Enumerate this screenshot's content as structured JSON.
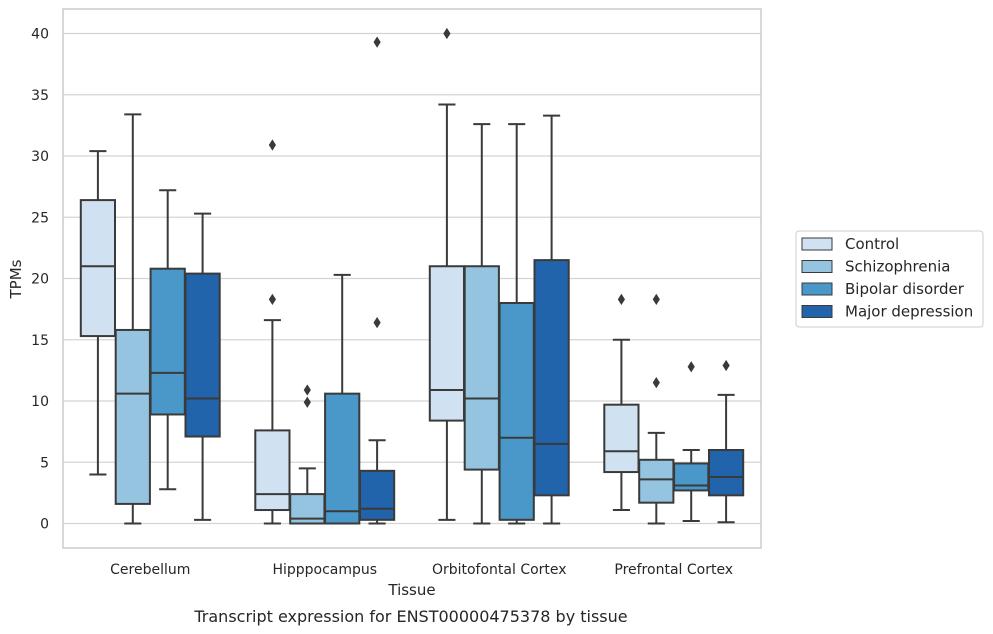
{
  "chart_data": {
    "type": "box",
    "caption": "Transcript expression for ENST00000475378 by tissue",
    "xlabel": "Tissue",
    "ylabel": "TPMs",
    "ylim": [
      -2,
      42
    ],
    "yticks": [
      0,
      5,
      10,
      15,
      20,
      25,
      30,
      35,
      40
    ],
    "grid": true,
    "legend_position": "right",
    "categories": [
      "Cerebellum",
      "Hipppocampus",
      "Orbitofontal Cortex",
      "Prefrontal Cortex"
    ],
    "series": [
      {
        "name": "Control",
        "color": "#d0e1f2",
        "boxes": [
          {
            "whisker_low": 4.0,
            "q1": 15.3,
            "median": 21.0,
            "q3": 26.4,
            "whisker_high": 30.4,
            "outliers": []
          },
          {
            "whisker_low": 0.0,
            "q1": 1.1,
            "median": 2.4,
            "q3": 7.6,
            "whisker_high": 16.6,
            "outliers": [
              18.3,
              30.9
            ]
          },
          {
            "whisker_low": 0.3,
            "q1": 8.4,
            "median": 10.9,
            "q3": 21.0,
            "whisker_high": 34.2,
            "outliers": [
              40.0
            ]
          },
          {
            "whisker_low": 1.1,
            "q1": 4.2,
            "median": 5.9,
            "q3": 9.7,
            "whisker_high": 15.0,
            "outliers": [
              18.3
            ]
          }
        ]
      },
      {
        "name": "Schizophrenia",
        "color": "#94c4df",
        "boxes": [
          {
            "whisker_low": 0.0,
            "q1": 1.6,
            "median": 10.6,
            "q3": 15.8,
            "whisker_high": 33.4,
            "outliers": []
          },
          {
            "whisker_low": 0.0,
            "q1": 0.0,
            "median": 0.4,
            "q3": 2.4,
            "whisker_high": 4.5,
            "outliers": [
              9.9,
              10.9
            ]
          },
          {
            "whisker_low": 0.0,
            "q1": 4.4,
            "median": 10.2,
            "q3": 21.0,
            "whisker_high": 32.6,
            "outliers": []
          },
          {
            "whisker_low": 0.0,
            "q1": 1.7,
            "median": 3.6,
            "q3": 5.2,
            "whisker_high": 7.4,
            "outliers": [
              11.5,
              18.3
            ]
          }
        ]
      },
      {
        "name": "Bipolar disorder",
        "color": "#4a98c9",
        "boxes": [
          {
            "whisker_low": 2.8,
            "q1": 8.9,
            "median": 12.3,
            "q3": 20.8,
            "whisker_high": 27.2,
            "outliers": []
          },
          {
            "whisker_low": 0.0,
            "q1": 0.0,
            "median": 1.0,
            "q3": 10.6,
            "whisker_high": 20.3,
            "outliers": []
          },
          {
            "whisker_low": 0.0,
            "q1": 0.3,
            "median": 7.0,
            "q3": 18.0,
            "whisker_high": 32.6,
            "outliers": []
          },
          {
            "whisker_low": 0.2,
            "q1": 2.7,
            "median": 3.1,
            "q3": 4.9,
            "whisker_high": 6.0,
            "outliers": [
              12.8
            ]
          }
        ]
      },
      {
        "name": "Major depression",
        "color": "#2164ab",
        "boxes": [
          {
            "whisker_low": 0.3,
            "q1": 7.1,
            "median": 10.2,
            "q3": 20.4,
            "whisker_high": 25.3,
            "outliers": []
          },
          {
            "whisker_low": 0.0,
            "q1": 0.3,
            "median": 1.2,
            "q3": 4.3,
            "whisker_high": 6.8,
            "outliers": [
              16.4,
              39.3
            ]
          },
          {
            "whisker_low": 0.0,
            "q1": 2.3,
            "median": 6.5,
            "q3": 21.5,
            "whisker_high": 33.3,
            "outliers": []
          },
          {
            "whisker_low": 0.1,
            "q1": 2.3,
            "median": 3.8,
            "q3": 6.0,
            "whisker_high": 10.5,
            "outliers": [
              12.9
            ]
          }
        ]
      }
    ]
  }
}
